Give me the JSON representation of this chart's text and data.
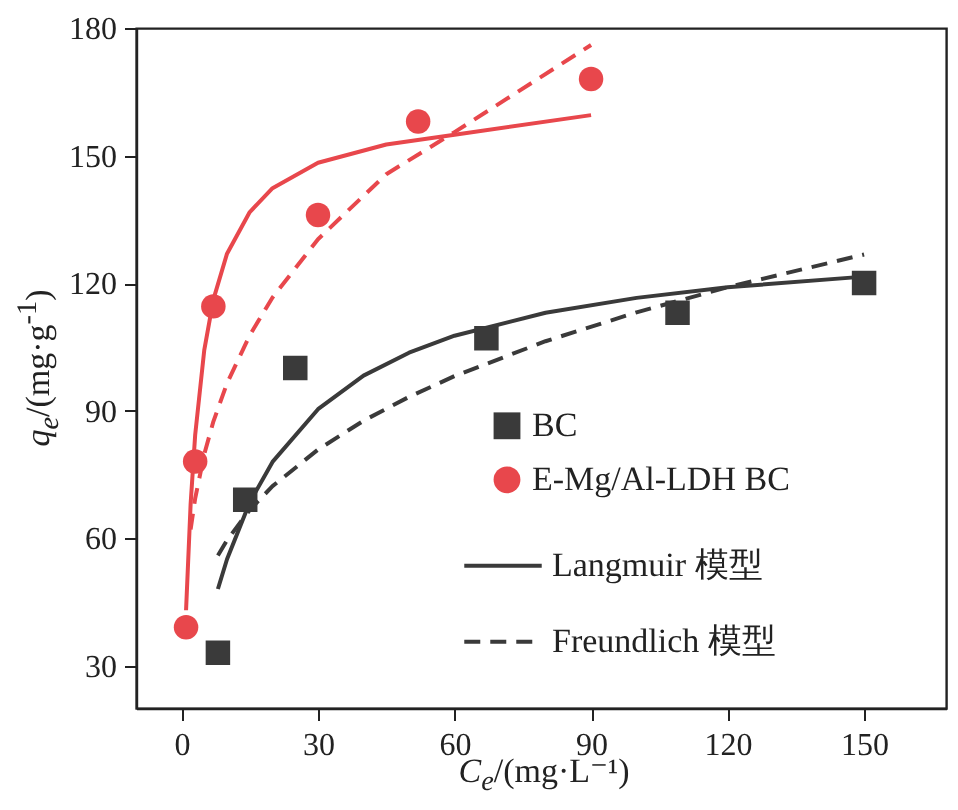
{
  "chart_data": {
    "type": "scatter",
    "xlabel": "C$_{e}$/(mg·L⁻¹)",
    "ylabel": "q$_{e}$/(mg·g$^{-1}$)",
    "xlim": [
      -10,
      168
    ],
    "ylim": [
      20,
      180
    ],
    "xticks": [
      0,
      30,
      60,
      90,
      120,
      150
    ],
    "yticks": [
      30,
      60,
      90,
      120,
      150,
      180
    ],
    "legend": "right",
    "series": [
      {
        "name": "BC",
        "type": "scatter",
        "marker": "square",
        "color": "#3a3a3a",
        "x": [
          8,
          14,
          25,
          67,
          109,
          150
        ],
        "values": [
          33,
          69,
          100,
          107,
          113,
          120
        ]
      },
      {
        "name": "E-Mg/Al-LDH BC",
        "type": "scatter",
        "marker": "circle",
        "color": "#e8474c",
        "x": [
          1,
          3,
          7,
          30,
          52,
          90
        ],
        "values": [
          39,
          78,
          114.5,
          136,
          158,
          168
        ]
      },
      {
        "name": "Langmuir 模型",
        "type": "line",
        "line_style": "solid",
        "color": "#3a3a3a",
        "x": [
          8,
          10,
          15,
          20,
          30,
          40,
          50,
          60,
          80,
          100,
          120,
          150
        ],
        "values": [
          48.0,
          55.0,
          68.4,
          77.9,
          90.3,
          98.2,
          103.6,
          107.6,
          113.0,
          116.5,
          119.0,
          121.5
        ]
      },
      {
        "name": "Freundlich 模型",
        "type": "line",
        "line_style": "dashed",
        "color": "#3a3a3a",
        "x": [
          8,
          10,
          15,
          20,
          30,
          40,
          50,
          60,
          80,
          100,
          120,
          150
        ],
        "values": [
          55.9,
          59.5,
          66.6,
          72.2,
          80.8,
          87.6,
          93.2,
          98.1,
          106.3,
          113.1,
          119.0,
          126.7
        ]
      },
      {
        "type": "line",
        "line_style": "solid",
        "color": "#e8474c",
        "x": [
          1,
          2,
          3,
          5,
          7,
          10,
          15,
          20,
          30,
          45,
          60,
          90
        ],
        "values": [
          43.0,
          67.9,
          84.2,
          104.2,
          116.1,
          126.9,
          136.7,
          142.3,
          148.3,
          152.6,
          154.9,
          159.5
        ]
      },
      {
        "type": "line",
        "line_style": "dashed",
        "color": "#e8474c",
        "x": [
          2,
          3,
          5,
          7,
          10,
          15,
          20,
          30,
          45,
          60,
          90
        ],
        "values": [
          62.0,
          69.3,
          79.7,
          87.4,
          96.4,
          107.7,
          116.6,
          130.3,
          145.6,
          155.5,
          176.0
        ]
      }
    ]
  }
}
